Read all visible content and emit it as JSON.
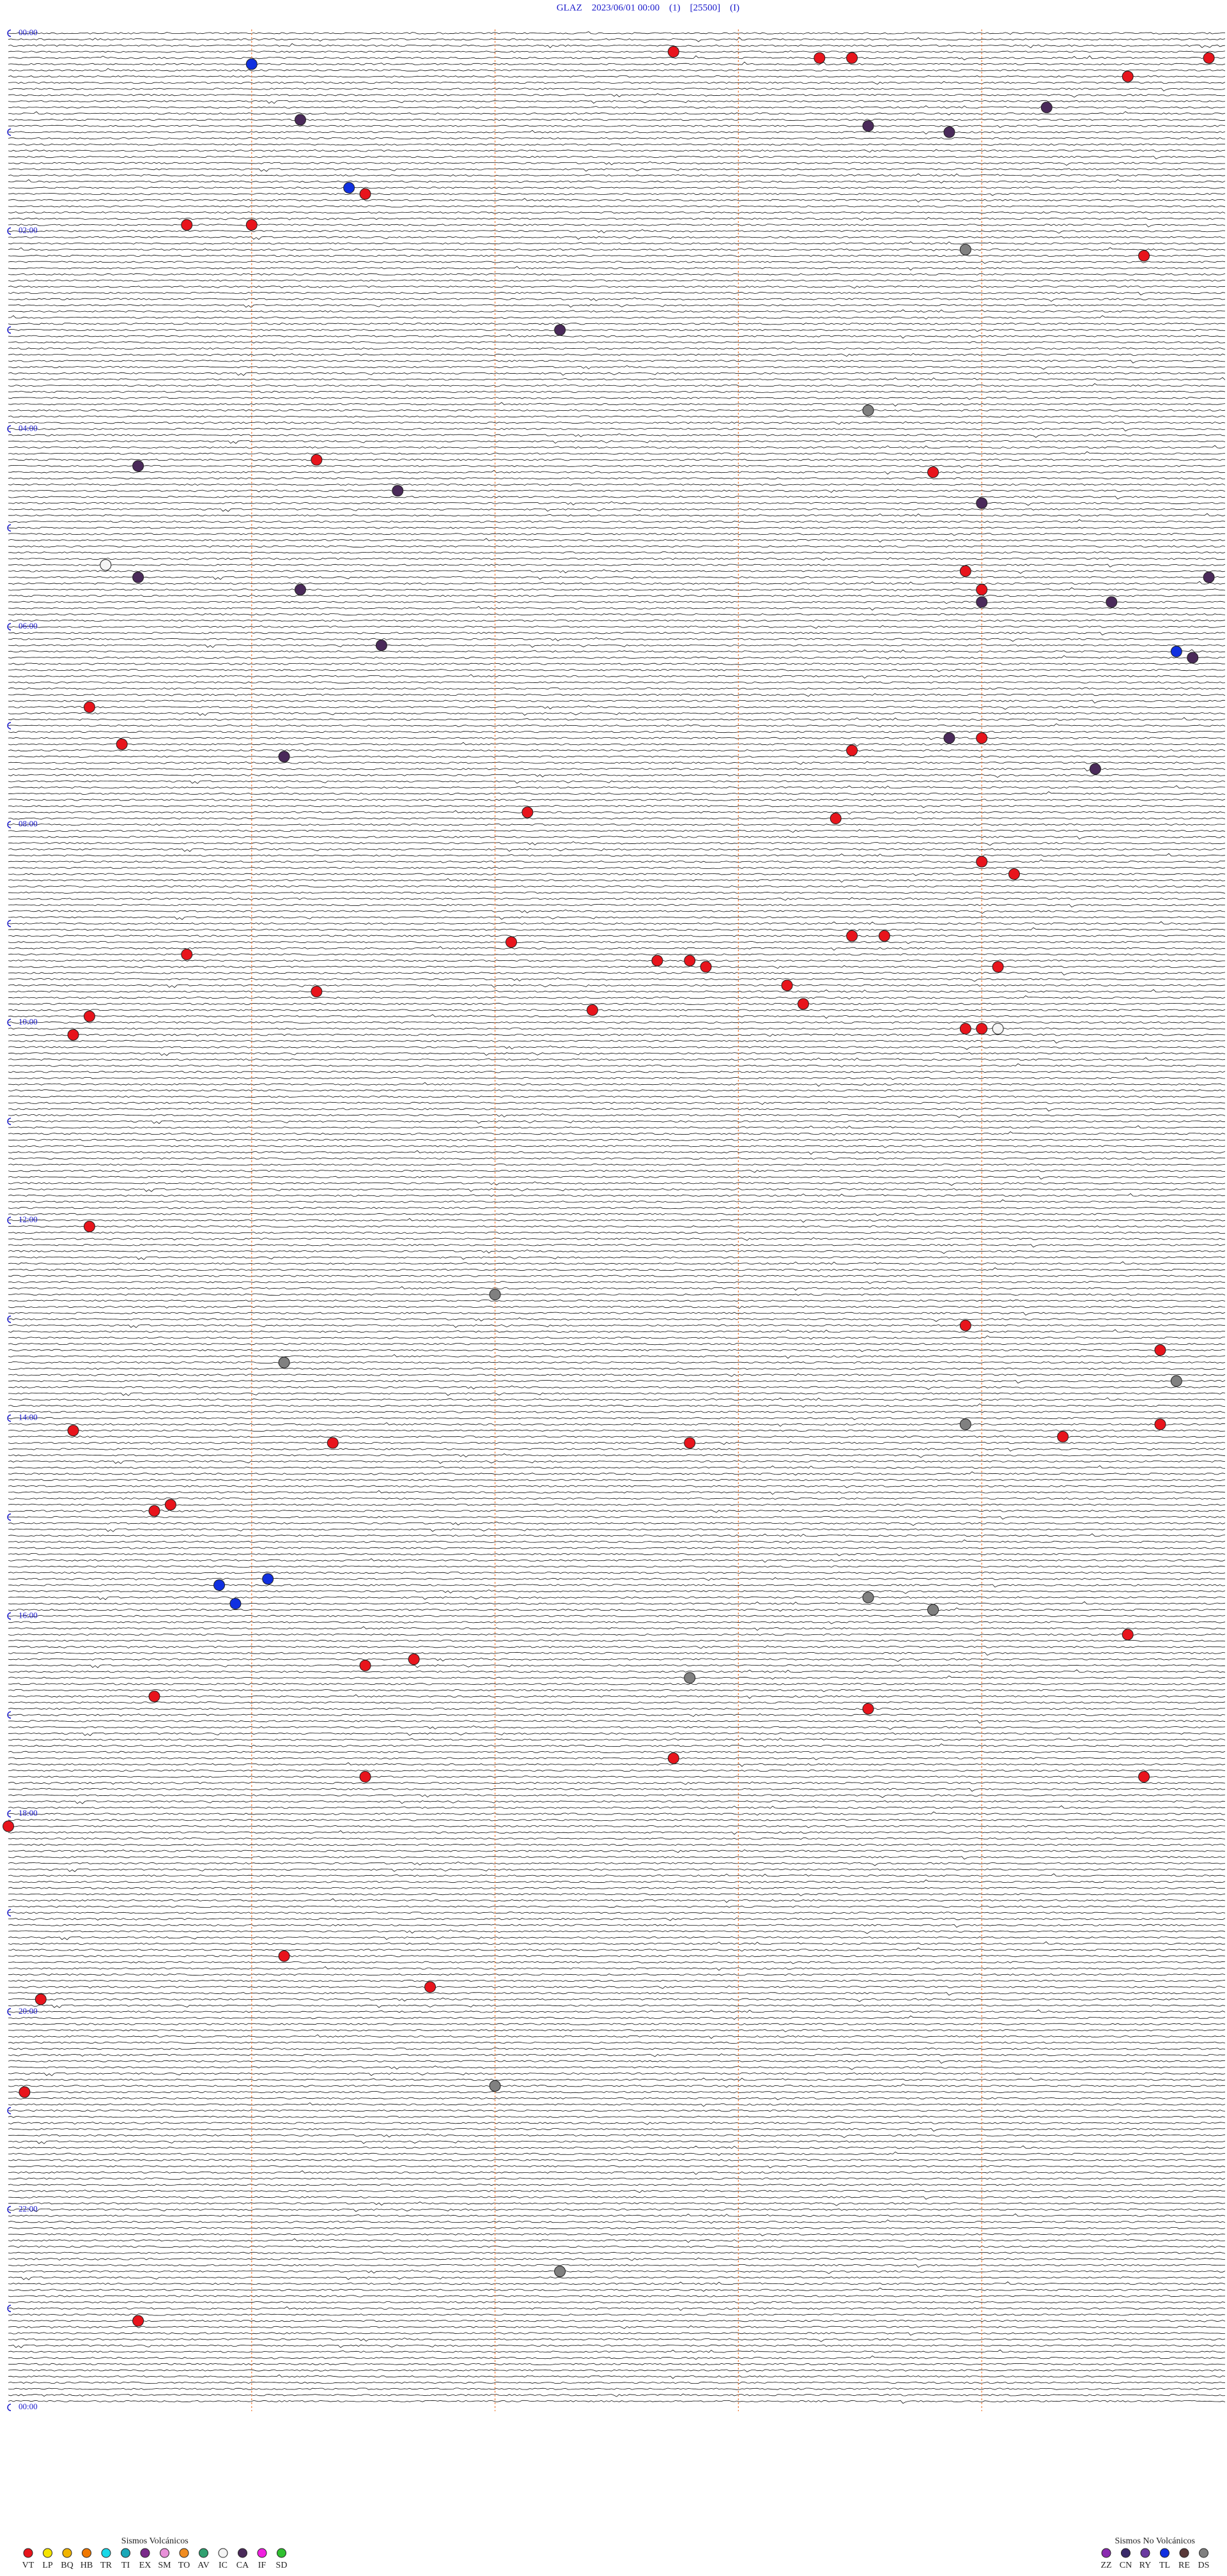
{
  "chart_data": {
    "type": "helicorder",
    "title": "GLAZ    2023/06/01 00:00    (1)    [25500]    (I)",
    "hour_labels": [
      "00:00",
      "02:00",
      "04:00",
      "06:00",
      "08:00",
      "10:00",
      "12:00",
      "14:00",
      "16:00",
      "18:00",
      "20:00",
      "22:00",
      "00:00"
    ],
    "legend_groups": [
      {
        "title": "Sismos Volcánicos",
        "items": [
          {
            "code": "VT",
            "color": "#e8141c"
          },
          {
            "code": "LP",
            "color": "#f5e400"
          },
          {
            "code": "BQ",
            "color": "#f0b400"
          },
          {
            "code": "HB",
            "color": "#f07800"
          },
          {
            "code": "TR",
            "color": "#19d8e8"
          },
          {
            "code": "TI",
            "color": "#1aa8b8"
          },
          {
            "code": "EX",
            "color": "#7a2a8a"
          },
          {
            "code": "SM",
            "color": "#e890d8"
          },
          {
            "code": "TO",
            "color": "#f08c20"
          },
          {
            "code": "AV",
            "color": "#30a070"
          },
          {
            "code": "IC",
            "color": "#f4f4f4"
          },
          {
            "code": "CA",
            "color": "#4a2a5a"
          },
          {
            "code": "IF",
            "color": "#f020e0"
          },
          {
            "code": "SD",
            "color": "#30c030"
          }
        ]
      },
      {
        "title": "Sismos No Volcánicos",
        "items": [
          {
            "code": "ZZ",
            "color": "#8a2ab0"
          },
          {
            "code": "CN",
            "color": "#3a2a6a"
          },
          {
            "code": "RY",
            "color": "#6a3aa0"
          },
          {
            "code": "TL",
            "color": "#1030e0"
          },
          {
            "code": "RE",
            "color": "#5a3a3a"
          },
          {
            "code": "DS",
            "color": "#808080"
          }
        ]
      }
    ],
    "events": [
      {
        "t": 17.5,
        "code": "VT"
      },
      {
        "t": 17.6,
        "code": "VT"
      },
      {
        "t": 18.7,
        "code": "VT"
      },
      {
        "t": 13.3,
        "code": "VT"
      },
      {
        "t": 19.5,
        "code": "TL"
      },
      {
        "t": 29.7,
        "code": "VT"
      },
      {
        "t": 48.2,
        "code": "CA"
      },
      {
        "t": 53.4,
        "code": "CA"
      },
      {
        "t": 58.9,
        "code": "CA"
      },
      {
        "t": 62.9,
        "code": "CA"
      },
      {
        "t": 94.8,
        "code": "TL"
      },
      {
        "t": 98.6,
        "code": "VT"
      },
      {
        "t": 116.8,
        "code": "VT"
      },
      {
        "t": 117,
        "code": "VT"
      },
      {
        "t": 134.2,
        "code": "DS"
      },
      {
        "t": 138.5,
        "code": "VT"
      },
      {
        "t": 181.7,
        "code": "CA"
      },
      {
        "t": 231.4,
        "code": "DS"
      },
      {
        "t": 259.7,
        "code": "VT"
      },
      {
        "t": 262.9,
        "code": "CA"
      },
      {
        "t": 269.1,
        "code": "VT"
      },
      {
        "t": 278.7,
        "code": "CA"
      },
      {
        "t": 288,
        "code": "CA"
      },
      {
        "t": 322.8,
        "code": "IC"
      },
      {
        "t": 329.2,
        "code": "VT"
      },
      {
        "t": 330.4,
        "code": "CA"
      },
      {
        "t": 333.7,
        "code": "CA"
      },
      {
        "t": 338.4,
        "code": "CA"
      },
      {
        "t": 340.5,
        "code": "VT"
      },
      {
        "t": 348.4,
        "code": "CA"
      },
      {
        "t": 348,
        "code": "CA"
      },
      {
        "t": 372.4,
        "code": "CA"
      },
      {
        "t": 382.4,
        "code": "CA"
      },
      {
        "t": 378.6,
        "code": "TL"
      },
      {
        "t": 409,
        "code": "VT"
      },
      {
        "t": 431.6,
        "code": "VT"
      },
      {
        "t": 430.4,
        "code": "CA"
      },
      {
        "t": 430.5,
        "code": "VT"
      },
      {
        "t": 439.6,
        "code": "CA"
      },
      {
        "t": 449.6,
        "code": "CA"
      },
      {
        "t": 437.6,
        "code": "VT"
      },
      {
        "t": 474.1,
        "code": "VT"
      },
      {
        "t": 478.8,
        "code": "VT"
      },
      {
        "t": 505.5,
        "code": "VT"
      },
      {
        "t": 513.1,
        "code": "VT"
      },
      {
        "t": 552.8,
        "code": "VT"
      },
      {
        "t": 550.1,
        "code": "VT"
      },
      {
        "t": 550.2,
        "code": "VT"
      },
      {
        "t": 559.3,
        "code": "VT"
      },
      {
        "t": 569.3,
        "code": "VT"
      },
      {
        "t": 568.4,
        "code": "VT"
      },
      {
        "t": 564.5,
        "code": "VT"
      },
      {
        "t": 564.6,
        "code": "VT"
      },
      {
        "t": 579.9,
        "code": "VT"
      },
      {
        "t": 582.2,
        "code": "VT"
      },
      {
        "t": 591.2,
        "code": "VT"
      },
      {
        "t": 596.5,
        "code": "VT"
      },
      {
        "t": 606.7,
        "code": "VT"
      },
      {
        "t": 606.75,
        "code": "VT"
      },
      {
        "t": 606.8,
        "code": "IC"
      },
      {
        "t": 607.7,
        "code": "VT"
      },
      {
        "t": 594.3,
        "code": "VT"
      },
      {
        "t": 724,
        "code": "VT"
      },
      {
        "t": 766.5,
        "code": "DS"
      },
      {
        "t": 786.7,
        "code": "VT"
      },
      {
        "t": 807.1,
        "code": "DS"
      },
      {
        "t": 821.1,
        "code": "DS"
      },
      {
        "t": 802.3,
        "code": "VT"
      },
      {
        "t": 856,
        "code": "VT"
      },
      {
        "t": 846.7,
        "code": "DS"
      },
      {
        "t": 857.1,
        "code": "VT"
      },
      {
        "t": 847.3,
        "code": "VT"
      },
      {
        "t": 847.7,
        "code": "VT"
      },
      {
        "t": 854.5,
        "code": "VT"
      },
      {
        "t": 896.7,
        "code": "VT"
      },
      {
        "t": 893,
        "code": "VT"
      },
      {
        "t": 941.9,
        "code": "TL"
      },
      {
        "t": 938.3,
        "code": "TL"
      },
      {
        "t": 953.2,
        "code": "TL"
      },
      {
        "t": 951.4,
        "code": "DS"
      },
      {
        "t": 959.1,
        "code": "DS"
      },
      {
        "t": 974.7,
        "code": "VT"
      },
      {
        "t": 991.1,
        "code": "VT"
      },
      {
        "t": 987.5,
        "code": "VT"
      },
      {
        "t": 1058.6,
        "code": "VT"
      },
      {
        "t": 1048.3,
        "code": "VT"
      },
      {
        "t": 1061,
        "code": "VT"
      },
      {
        "t": 1087.5,
        "code": "VT"
      },
      {
        "t": 1167.1,
        "code": "VT"
      },
      {
        "t": 1186.3,
        "code": "VT"
      },
      {
        "t": 1192.6,
        "code": "VT"
      },
      {
        "t": 1246.5,
        "code": "DS"
      },
      {
        "t": 1248.8,
        "code": "VT"
      },
      {
        "t": 1359.2,
        "code": "DS"
      },
      {
        "t": 1387.9,
        "code": "VT"
      },
      {
        "t": 999.6,
        "code": "DS"
      },
      {
        "t": 1009.2,
        "code": "VT"
      },
      {
        "t": 1018.9,
        "code": "VT"
      }
    ]
  }
}
